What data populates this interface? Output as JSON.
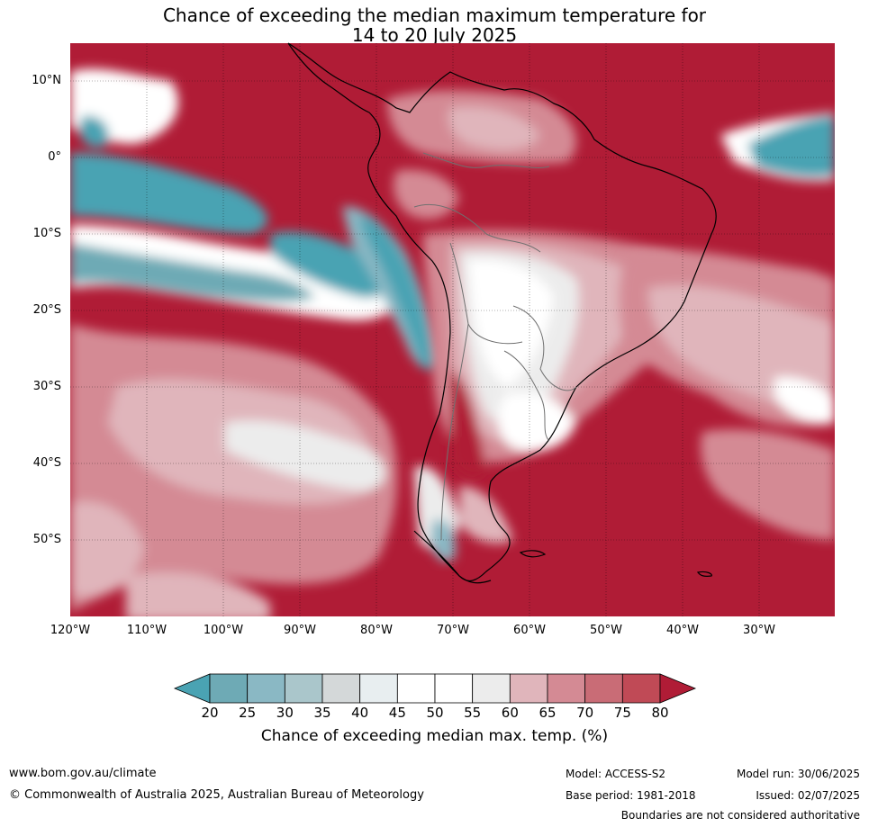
{
  "title_line1": "Chance of exceeding the median maximum temperature for",
  "title_line2": "14 to 20 July 2025",
  "lat_labels": [
    "10°N",
    "0°",
    "10°S",
    "20°S",
    "30°S",
    "40°S",
    "50°S"
  ],
  "lon_labels": [
    "120°W",
    "110°W",
    "100°W",
    "90°W",
    "80°W",
    "70°W",
    "60°W",
    "50°W",
    "40°W",
    "30°W"
  ],
  "colorbar": {
    "label": "Chance of exceeding median max. temp. (%)",
    "ticks": [
      "20",
      "25",
      "30",
      "35",
      "40",
      "45",
      "50",
      "55",
      "60",
      "65",
      "70",
      "75",
      "80"
    ],
    "colors": [
      "#4aa3b3",
      "#6eaab5",
      "#8ab8c4",
      "#aac6cb",
      "#d4d8d9",
      "#e8eef0",
      "#ffffff",
      "#ffffff",
      "#ececec",
      "#e0b5bb",
      "#d48a94",
      "#c96c76",
      "#c04a56",
      "#b01c36"
    ]
  },
  "footer": {
    "website": "www.bom.gov.au/climate",
    "copyright": "© Commonwealth of Australia 2025, Australian Bureau of Meteorology",
    "model": "Model: ACCESS-S2",
    "base_period": "Base period: 1981-2018",
    "model_run": "Model run: 30/06/2025",
    "issued": "Issued: 02/07/2025",
    "disclaimer": "Boundaries are not considered authoritative"
  }
}
